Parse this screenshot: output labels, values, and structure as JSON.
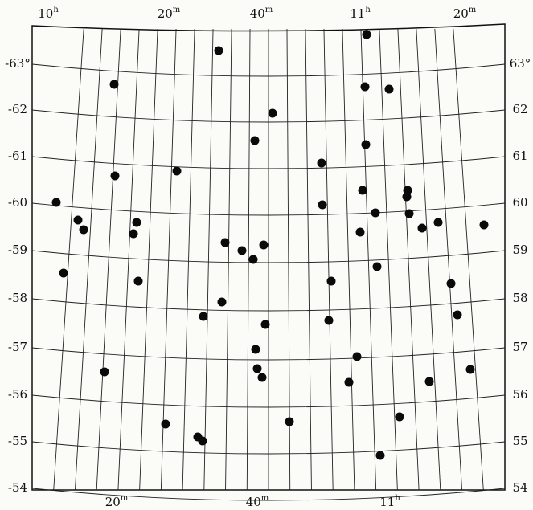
{
  "top_labels": [
    {
      "main": "10",
      "sup": "h"
    },
    {
      "main": "20",
      "sup": "m"
    },
    {
      "main": "40",
      "sup": "m"
    },
    {
      "main": "11",
      "sup": "h"
    },
    {
      "main": "20",
      "sup": "m"
    }
  ],
  "bottom_labels": [
    {
      "main": "20",
      "sup": "m"
    },
    {
      "main": "40",
      "sup": "m"
    },
    {
      "main": "11",
      "sup": "h"
    }
  ],
  "left_labels": [
    "-63°",
    "-62",
    "-61",
    "-60",
    "-59",
    "-58",
    "-57",
    "-56",
    "-55",
    "-54"
  ],
  "right_labels": [
    "63°",
    "62",
    "61",
    "60",
    "59",
    "58",
    "57",
    "56",
    "55",
    "54"
  ]
}
